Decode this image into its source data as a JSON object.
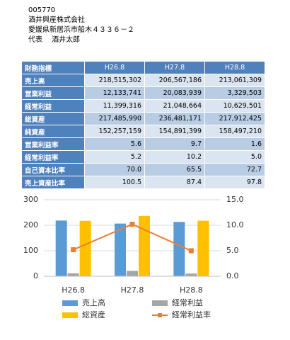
{
  "header": {
    "code": "005770",
    "company": "酒井興産株式会社",
    "address": "愛媛県新居浜市船木４３３６－２",
    "representative": "代表　 酒井太郎"
  },
  "table": {
    "header": [
      "財務指標",
      "H26.8",
      "H27.8",
      "H28.8"
    ],
    "rows": [
      [
        "売上高",
        "218,515,302",
        "206,567,186",
        "213,061,309"
      ],
      [
        "営業利益",
        "12,133,741",
        "20,083,939",
        "3,329,503"
      ],
      [
        "経常利益",
        "11,399,316",
        "21,048,664",
        "10,629,501"
      ],
      [
        "総資産",
        "217,485,990",
        "236,481,171",
        "217,912,425"
      ],
      [
        "純資産",
        "152,257,159",
        "154,891,399",
        "158,497,210"
      ],
      [
        "営業利益率",
        "5.6",
        "9.7",
        "1.6"
      ],
      [
        "経常利益率",
        "5.2",
        "10.2",
        "5.0"
      ],
      [
        "自己資本比率",
        "70.0",
        "65.5",
        "72.7"
      ],
      [
        "売上資産比率",
        "100.5",
        "87.4",
        "97.8"
      ]
    ]
  },
  "chart_data": {
    "type": "bar",
    "categories": [
      "H26.8",
      "H27.8",
      "H28.8"
    ],
    "series": [
      {
        "name": "売上高",
        "color": "#5b9bd5",
        "values": [
          218.5,
          206.6,
          213.1
        ]
      },
      {
        "name": "経常利益",
        "color": "#a5a5a5",
        "values": [
          11.4,
          21.0,
          10.6
        ]
      },
      {
        "name": "総資産",
        "color": "#ffc000",
        "values": [
          217.5,
          236.5,
          217.9
        ]
      },
      {
        "name": "経常利益率",
        "color": "#ed7d31",
        "type": "line",
        "axis": "y2",
        "values": [
          5.2,
          10.2,
          5.0
        ]
      }
    ],
    "ylim": [
      0,
      300
    ],
    "yticks": [
      0,
      100,
      200,
      300
    ],
    "y2lim": [
      0,
      15
    ],
    "y2ticks": [
      {
        "value": 0,
        "label": "0.0"
      },
      {
        "value": 5,
        "label": "5.0"
      },
      {
        "value": 10,
        "label": "10.0"
      },
      {
        "value": 15,
        "label": "15.0"
      }
    ],
    "grid": true
  }
}
